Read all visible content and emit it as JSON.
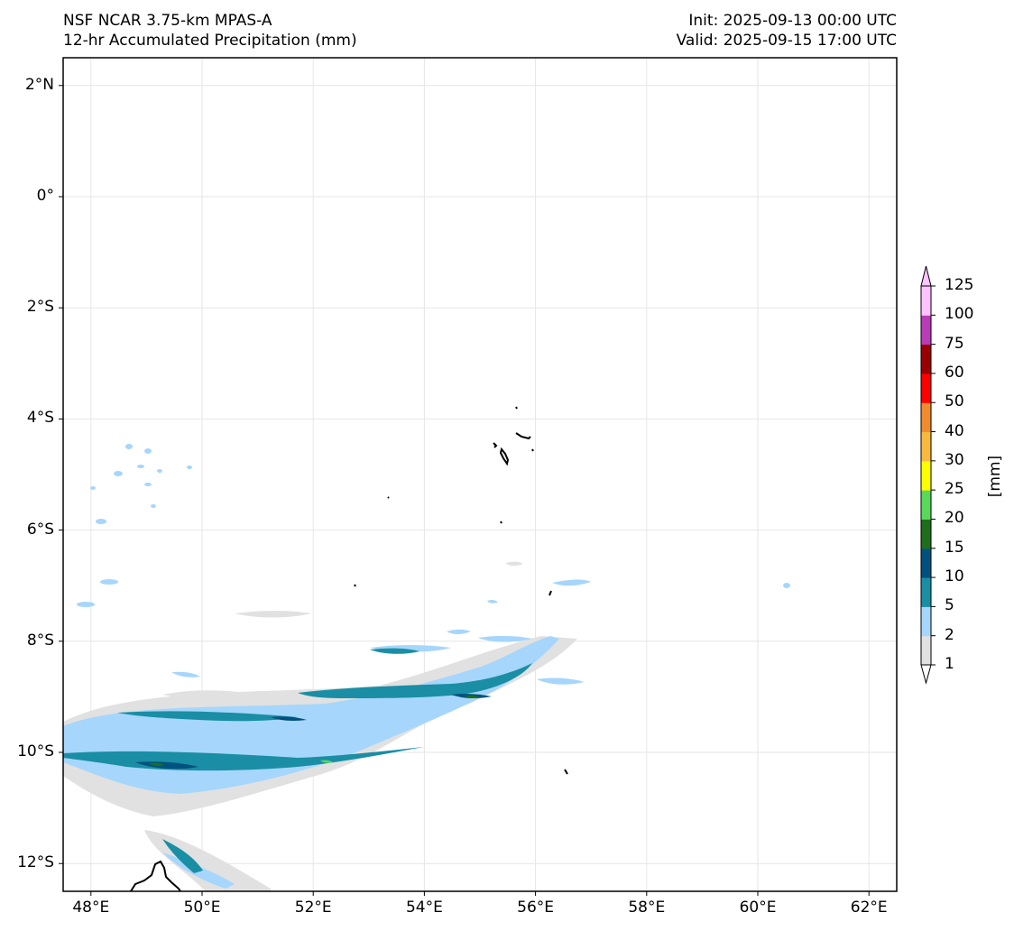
{
  "header": {
    "model": "NSF NCAR 3.75-km MPAS-A",
    "field": "12-hr Accumulated Precipitation (mm)",
    "init": "Init: 2025-09-13 00:00 UTC",
    "valid": "Valid: 2025-09-15 17:00 UTC"
  },
  "map": {
    "lon_range": [
      47.5,
      62.5
    ],
    "lat_range": [
      -12.5,
      2.5
    ],
    "lat_ticks": [
      {
        "value": 2,
        "label": "2°N"
      },
      {
        "value": 0,
        "label": "0°"
      },
      {
        "value": -2,
        "label": "2°S"
      },
      {
        "value": -4,
        "label": "4°S"
      },
      {
        "value": -6,
        "label": "6°S"
      },
      {
        "value": -8,
        "label": "8°S"
      },
      {
        "value": -10,
        "label": "10°S"
      },
      {
        "value": -12,
        "label": "12°S"
      }
    ],
    "lon_ticks": [
      {
        "value": 48,
        "label": "48°E"
      },
      {
        "value": 50,
        "label": "50°E"
      },
      {
        "value": 52,
        "label": "52°E"
      },
      {
        "value": 54,
        "label": "54°E"
      },
      {
        "value": 56,
        "label": "56°E"
      },
      {
        "value": 58,
        "label": "58°E"
      },
      {
        "value": 60,
        "label": "60°E"
      },
      {
        "value": 62,
        "label": "62°E"
      }
    ],
    "gridlines": true
  },
  "colorbar": {
    "unit_label": "[mm]",
    "levels": [
      "1",
      "2",
      "5",
      "10",
      "15",
      "20",
      "25",
      "30",
      "40",
      "50",
      "60",
      "75",
      "100",
      "125"
    ],
    "colors": [
      "#e1e1e1",
      "#a6d6fb",
      "#1a8ea4",
      "#00527e",
      "#1e6e1e",
      "#5ad85a",
      "#ffff00",
      "#f7b940",
      "#f08b2f",
      "#ff0000",
      "#9b0000",
      "#b83cb5",
      "#ffc3ff"
    ],
    "extend": "both"
  }
}
